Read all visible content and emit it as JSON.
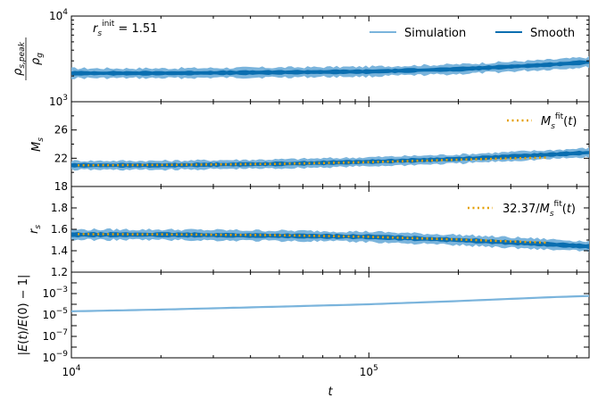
{
  "colors": {
    "simulation": "#7ab4dc",
    "smooth": "#0a6eb0",
    "fit": "#e6a100"
  },
  "chart_data": {
    "type": "line",
    "layout": "4 stacked panels sharing x-axis",
    "xscale": "log",
    "xlim": [
      10000,
      550000
    ],
    "xlabel": "t",
    "x_tick_labels": [
      "10^4",
      "10^5"
    ],
    "panels": [
      {
        "id": "density",
        "ylabel": "ρs,peak / ρg",
        "yscale": "log",
        "ylim": [
          1000,
          10000
        ],
        "y_tick_labels": [
          "10^3",
          "10^4"
        ],
        "annotation": "r_s^init = 1.51",
        "legend": [
          {
            "label": "Simulation",
            "style": "solid-light"
          },
          {
            "label": "Smooth",
            "style": "solid-dark"
          }
        ],
        "series": [
          {
            "name": "Simulation",
            "x": [
              10000,
              20000,
              50000,
              100000,
              200000,
              400000,
              550000
            ],
            "y": [
              2150,
              2150,
              2200,
              2250,
              2400,
              2700,
              2900
            ],
            "band": 1.18
          },
          {
            "name": "Smooth",
            "x": [
              10000,
              20000,
              50000,
              100000,
              200000,
              400000,
              550000
            ],
            "y": [
              2150,
              2150,
              2200,
              2250,
              2400,
              2700,
              2900
            ],
            "band": 1.07
          }
        ]
      },
      {
        "id": "mass",
        "ylabel": "M_s",
        "yscale": "linear",
        "ylim": [
          18,
          30
        ],
        "y_ticks": [
          18,
          22,
          26
        ],
        "legend": [
          {
            "label": "M_s^fit(t)",
            "style": "dotted"
          }
        ],
        "series": [
          {
            "name": "Simulation",
            "x": [
              10000,
              20000,
              50000,
              100000,
              200000,
              400000,
              550000
            ],
            "y": [
              21.0,
              21.0,
              21.2,
              21.5,
              21.9,
              22.5,
              22.8
            ],
            "band": 0.8
          },
          {
            "name": "Smooth",
            "x": [
              10000,
              20000,
              50000,
              100000,
              200000,
              400000,
              550000
            ],
            "y": [
              21.0,
              21.0,
              21.2,
              21.5,
              21.9,
              22.5,
              22.8
            ],
            "band": 0.35
          },
          {
            "name": "M_s^fit(t)",
            "x": [
              10500,
              20000,
              50000,
              100000,
              200000,
              400000
            ],
            "y": [
              21.0,
              21.05,
              21.2,
              21.45,
              21.8,
              22.1
            ]
          }
        ]
      },
      {
        "id": "radius",
        "ylabel": "r_s",
        "yscale": "linear",
        "ylim": [
          1.2,
          2.0
        ],
        "y_ticks": [
          1.2,
          1.4,
          1.6,
          1.8
        ],
        "legend": [
          {
            "label": "32.37/M_s^fit(t)",
            "style": "dotted"
          }
        ],
        "series": [
          {
            "name": "Simulation",
            "x": [
              10000,
              20000,
              50000,
              100000,
              200000,
              400000,
              550000
            ],
            "y": [
              1.55,
              1.55,
              1.54,
              1.53,
              1.5,
              1.46,
              1.44
            ],
            "band": 0.06
          },
          {
            "name": "Smooth",
            "x": [
              10000,
              20000,
              50000,
              100000,
              200000,
              400000,
              550000
            ],
            "y": [
              1.55,
              1.55,
              1.54,
              1.53,
              1.5,
              1.46,
              1.44
            ],
            "band": 0.025
          },
          {
            "name": "32.37/M_s^fit(t)",
            "x": [
              10500,
              20000,
              50000,
              100000,
              200000,
              400000
            ],
            "y": [
              1.555,
              1.553,
              1.545,
              1.53,
              1.505,
              1.475
            ]
          }
        ]
      },
      {
        "id": "energy",
        "ylabel": "|E(t)/E(0) − 1|",
        "yscale": "log",
        "ylim": [
          1e-09,
          0.1
        ],
        "y_tick_labels": [
          "10^-9",
          "10^-7",
          "10^-5",
          "10^-3"
        ],
        "series": [
          {
            "name": "Simulation",
            "x": [
              10000,
              20000,
              50000,
              100000,
              200000,
              400000,
              550000
            ],
            "y": [
              2.2e-05,
              3.2e-05,
              6e-05,
              0.0001,
              0.0002,
              0.00045,
              0.0006
            ]
          }
        ]
      }
    ]
  }
}
